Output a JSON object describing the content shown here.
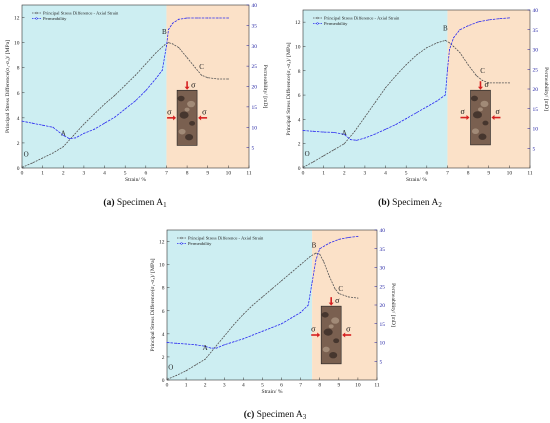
{
  "chart_data": [
    {
      "type": "line",
      "caption": {
        "label": "(a)",
        "text": " Specimen A",
        "sub": "1"
      },
      "xlabel": "Strain/ %",
      "ylabel_left": "Principal Stress Difference(σ₁-σ₃)/ [MPa]",
      "ylabel_right": "Permeability/ [mD]",
      "xlim": [
        0,
        11
      ],
      "ylim_left": [
        0,
        13
      ],
      "ylim_right": [
        0,
        40
      ],
      "xticks": [
        0,
        1,
        2,
        3,
        4,
        5,
        6,
        7,
        8,
        9,
        10,
        11
      ],
      "yticks_left": [
        0,
        2,
        4,
        6,
        8,
        10,
        12
      ],
      "yticks_right": [
        5,
        10,
        15,
        20,
        25,
        30,
        35,
        40
      ],
      "shaded": [
        {
          "x0": 0,
          "x1": 7,
          "color": "#cdeef2"
        },
        {
          "x0": 7,
          "x1": 11,
          "color": "#fbe1c8"
        }
      ],
      "series": [
        {
          "name": "Principal Stress Difference - Axial Strain",
          "axis": "left",
          "color": "#555555",
          "x": [
            0,
            0.5,
            1,
            1.5,
            2,
            2.5,
            3,
            3.5,
            4,
            4.5,
            5,
            5.5,
            6,
            6.5,
            6.9,
            7.1,
            7.3,
            7.6,
            8,
            8.4,
            8.7,
            9,
            9.5,
            10
          ],
          "y": [
            0.05,
            0.4,
            0.8,
            1.2,
            1.7,
            2.6,
            3.5,
            4.3,
            5.1,
            5.8,
            6.6,
            7.4,
            8.3,
            9.2,
            9.8,
            10.0,
            9.9,
            9.6,
            8.8,
            8.0,
            7.4,
            7.2,
            7.1,
            7.1
          ]
        },
        {
          "name": "Permeability",
          "axis": "right",
          "color": "#2d2df0",
          "x": [
            0,
            0.5,
            1,
            1.5,
            2,
            2.3,
            2.6,
            3,
            3.5,
            4,
            4.5,
            5,
            5.5,
            6,
            6.5,
            6.8,
            7.0,
            7.1,
            7.3,
            7.6,
            8,
            8.5,
            9,
            9.5,
            10
          ],
          "y": [
            11.5,
            11,
            10.5,
            10,
            8,
            7.2,
            7.4,
            8.5,
            9.5,
            11,
            12.5,
            14.5,
            16.5,
            19,
            22,
            24,
            30,
            34,
            35.5,
            36.5,
            36.8,
            36.8,
            36.8,
            36.8,
            36.8
          ]
        }
      ],
      "annotations": [
        {
          "label": "O",
          "x": 0.2,
          "y": 0.9
        },
        {
          "label": "A",
          "x": 2.0,
          "y": 2.6
        },
        {
          "label": "B",
          "x": 6.9,
          "y": 10.7
        },
        {
          "label": "C",
          "x": 8.7,
          "y": 7.9
        }
      ],
      "inset": {
        "x": 8.0,
        "ylo": 1.8,
        "yhi": 6.2
      }
    },
    {
      "type": "line",
      "caption": {
        "label": "(b)",
        "text": " Specimen A",
        "sub": "2"
      },
      "xlabel": "Strain/ %",
      "ylabel_left": "Principal Stress Difference(σ₁-σ₃)/ [MPa]",
      "ylabel_right": "Permeability/ [mD]",
      "xlim": [
        0,
        11
      ],
      "ylim_left": [
        0,
        13
      ],
      "ylim_right": [
        0,
        40
      ],
      "xticks": [
        0,
        1,
        2,
        3,
        4,
        5,
        6,
        7,
        8,
        9,
        10,
        11
      ],
      "yticks_left": [
        0,
        2,
        4,
        6,
        8,
        10,
        12
      ],
      "yticks_right": [
        5,
        10,
        15,
        20,
        25,
        30,
        35,
        40
      ],
      "shaded": [
        {
          "x0": 0,
          "x1": 7,
          "color": "#cdeef2"
        },
        {
          "x0": 7,
          "x1": 11,
          "color": "#fbe1c8"
        }
      ],
      "series": [
        {
          "name": "Principal Stress Difference - Axial Strain",
          "axis": "left",
          "color": "#555555",
          "x": [
            0,
            0.5,
            1,
            1.5,
            2,
            2.5,
            3,
            3.5,
            4,
            4.5,
            5,
            5.5,
            6,
            6.5,
            6.9,
            7.1,
            7.3,
            7.6,
            8,
            8.4,
            8.7,
            9,
            9.5,
            10
          ],
          "y": [
            0.05,
            0.5,
            1.0,
            1.5,
            2.0,
            3.0,
            4.2,
            5.4,
            6.6,
            7.6,
            8.5,
            9.3,
            9.9,
            10.3,
            10.5,
            10.3,
            10.0,
            9.5,
            8.5,
            7.6,
            7.2,
            7.0,
            7.0,
            7.0
          ]
        },
        {
          "name": "Permeability",
          "axis": "right",
          "color": "#2d2df0",
          "x": [
            0,
            0.5,
            1,
            1.5,
            2,
            2.3,
            2.6,
            3,
            3.5,
            4,
            4.5,
            5,
            5.5,
            6,
            6.5,
            6.9,
            7.0,
            7.1,
            7.3,
            7.6,
            8,
            8.5,
            9,
            9.5,
            10
          ],
          "y": [
            9.5,
            9.3,
            9.1,
            9.0,
            8.5,
            7.2,
            7.0,
            7.6,
            8.6,
            9.8,
            11,
            12.5,
            14,
            15.5,
            17,
            18.5,
            25,
            30,
            33,
            35,
            36,
            37,
            37.5,
            37.8,
            38
          ]
        }
      ],
      "annotations": [
        {
          "label": "O",
          "x": 0.2,
          "y": 1.0
        },
        {
          "label": "A",
          "x": 2.0,
          "y": 2.7
        },
        {
          "label": "B",
          "x": 6.9,
          "y": 11.3
        },
        {
          "label": "C",
          "x": 8.7,
          "y": 7.8
        }
      ],
      "inset": {
        "x": 8.6,
        "ylo": 1.9,
        "yhi": 6.4
      }
    },
    {
      "type": "line",
      "caption": {
        "label": "(c)",
        "text": " Specimen A",
        "sub": "3"
      },
      "xlabel": "Strain/ %",
      "ylabel_left": "Principal Stress Difference(σ₁-σ₃)/ [MPa]",
      "ylabel_right": "Permeability/ [mD]",
      "xlim": [
        0,
        11
      ],
      "ylim_left": [
        0,
        13
      ],
      "ylim_right": [
        0,
        40
      ],
      "xticks": [
        0,
        1,
        2,
        3,
        4,
        5,
        6,
        7,
        8,
        9,
        10,
        11
      ],
      "yticks_left": [
        0,
        2,
        4,
        6,
        8,
        10,
        12
      ],
      "yticks_right": [
        5,
        10,
        15,
        20,
        25,
        30,
        35,
        40
      ],
      "shaded": [
        {
          "x0": 0,
          "x1": 7.6,
          "color": "#cdeef2"
        },
        {
          "x0": 7.6,
          "x1": 11,
          "color": "#fbe1c8"
        }
      ],
      "series": [
        {
          "name": "Principal Stress Difference - Axial Strain",
          "axis": "left",
          "color": "#555555",
          "x": [
            0,
            0.5,
            1,
            1.5,
            2,
            2.5,
            3,
            3.5,
            4,
            4.5,
            5,
            5.5,
            6,
            6.5,
            7,
            7.5,
            7.8,
            8.0,
            8.2,
            8.5,
            8.8,
            9,
            9.5,
            10
          ],
          "y": [
            0.05,
            0.4,
            0.8,
            1.3,
            1.8,
            2.8,
            3.8,
            4.8,
            5.7,
            6.5,
            7.2,
            7.9,
            8.6,
            9.3,
            10.0,
            10.7,
            11.0,
            10.9,
            10.3,
            9.0,
            7.9,
            7.5,
            7.2,
            7.1
          ]
        },
        {
          "name": "Permeability",
          "axis": "right",
          "color": "#2d2df0",
          "x": [
            0,
            0.5,
            1,
            1.5,
            2,
            2.3,
            2.6,
            3,
            3.5,
            4,
            4.5,
            5,
            5.5,
            6,
            6.5,
            7,
            7.4,
            7.6,
            7.8,
            8.0,
            8.5,
            9,
            9.5,
            10
          ],
          "y": [
            10,
            9.8,
            9.6,
            9.4,
            9.0,
            8.5,
            8.5,
            9.4,
            10.2,
            11,
            12,
            13,
            14,
            15,
            16.5,
            18,
            20,
            26,
            32,
            35,
            36.5,
            37.5,
            38,
            38.3
          ]
        }
      ],
      "annotations": [
        {
          "label": "O",
          "x": 0.2,
          "y": 0.9
        },
        {
          "label": "A",
          "x": 2.0,
          "y": 2.6
        },
        {
          "label": "B",
          "x": 7.7,
          "y": 11.5
        },
        {
          "label": "C",
          "x": 9.1,
          "y": 7.7
        }
      ],
      "inset": {
        "x": 8.6,
        "ylo": 1.4,
        "yhi": 6.4
      }
    }
  ],
  "sigma_symbol": "σ",
  "rock_colors": {
    "dark": "#3d2f28",
    "mid": "#7a6050",
    "light": "#a8927e",
    "outline": "#222222"
  },
  "accent_arrow": "#d62020"
}
